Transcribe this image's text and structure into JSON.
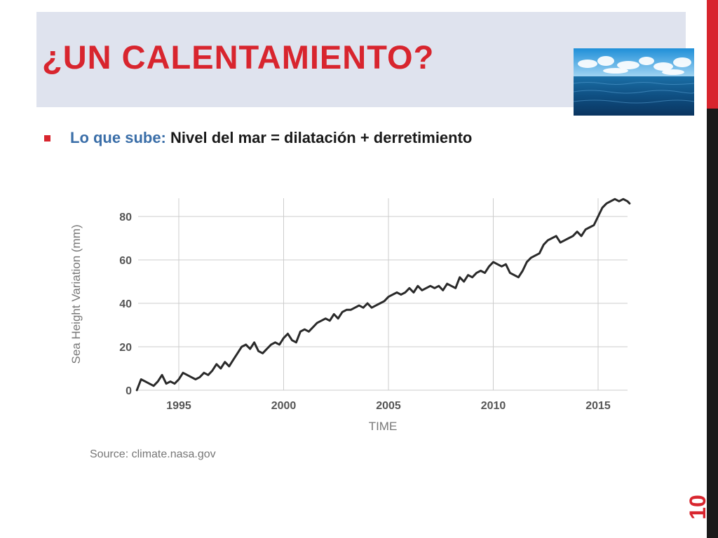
{
  "slide": {
    "title": "¿UN CALENTAMIENTO?",
    "bullet_lead": "Lo que sube:",
    "bullet_rest": " Nivel del mar = dilatación + derretimiento",
    "page_number": "10",
    "photo_icon": "ocean-photo"
  },
  "colors": {
    "title": "#d8252e",
    "accent_red": "#d8252e",
    "band": "#dfe3ee",
    "lead_blue": "#3a6ea8",
    "series": "#2a2a2a",
    "grid": "#cccccc"
  },
  "chart_source": "Source: climate.nasa.gov",
  "chart_data": {
    "type": "line",
    "title": "",
    "xlabel": "TIME",
    "ylabel": "Sea Height Variation (mm)",
    "xlim": [
      1993.0,
      2016.5
    ],
    "ylim": [
      0,
      89
    ],
    "xticks": [
      1995,
      2000,
      2005,
      2010,
      2015
    ],
    "yticks": [
      0,
      20,
      40,
      60,
      80
    ],
    "grid": true,
    "legend": "none",
    "series": [
      {
        "x": [
          1993.0,
          1993.2,
          1993.4,
          1993.6,
          1993.8,
          1994.0,
          1994.2,
          1994.4,
          1994.6,
          1994.8,
          1995.0,
          1995.2,
          1995.4,
          1995.6,
          1995.8,
          1996.0,
          1996.2,
          1996.4,
          1996.6,
          1996.8,
          1997.0,
          1997.2,
          1997.4,
          1997.6,
          1997.8,
          1998.0,
          1998.2,
          1998.4,
          1998.6,
          1998.8,
          1999.0,
          1999.2,
          1999.4,
          1999.6,
          1999.8,
          2000.0,
          2000.2,
          2000.4,
          2000.6,
          2000.8,
          2001.0,
          2001.2,
          2001.4,
          2001.6,
          2001.8,
          2002.0,
          2002.2,
          2002.4,
          2002.6,
          2002.8,
          2003.0,
          2003.2,
          2003.4,
          2003.6,
          2003.8,
          2004.0,
          2004.2,
          2004.4,
          2004.6,
          2004.8,
          2005.0,
          2005.2,
          2005.4,
          2005.6,
          2005.8,
          2006.0,
          2006.2,
          2006.4,
          2006.6,
          2006.8,
          2007.0,
          2007.2,
          2007.4,
          2007.6,
          2007.8,
          2008.0,
          2008.2,
          2008.4,
          2008.6,
          2008.8,
          2009.0,
          2009.2,
          2009.4,
          2009.6,
          2009.8,
          2010.0,
          2010.2,
          2010.4,
          2010.6,
          2010.8,
          2011.0,
          2011.2,
          2011.4,
          2011.6,
          2011.8,
          2012.0,
          2012.2,
          2012.4,
          2012.6,
          2012.8,
          2013.0,
          2013.2,
          2013.4,
          2013.6,
          2013.8,
          2014.0,
          2014.2,
          2014.4,
          2014.6,
          2014.8,
          2015.0,
          2015.2,
          2015.4,
          2015.6,
          2015.8,
          2016.0,
          2016.2,
          2016.4,
          2016.5
        ],
        "y": [
          0,
          5,
          4,
          3,
          2,
          4,
          7,
          3,
          4,
          3,
          5,
          8,
          7,
          6,
          5,
          6,
          8,
          7,
          9,
          12,
          10,
          13,
          11,
          14,
          17,
          20,
          21,
          19,
          22,
          18,
          17,
          19,
          21,
          22,
          21,
          24,
          26,
          23,
          22,
          27,
          28,
          27,
          29,
          31,
          32,
          33,
          32,
          35,
          33,
          36,
          37,
          37,
          38,
          39,
          38,
          40,
          38,
          39,
          40,
          41,
          43,
          44,
          45,
          44,
          45,
          47,
          45,
          48,
          46,
          47,
          48,
          47,
          48,
          46,
          49,
          48,
          47,
          52,
          50,
          53,
          52,
          54,
          55,
          54,
          57,
          59,
          58,
          57,
          58,
          54,
          53,
          52,
          55,
          59,
          61,
          62,
          63,
          67,
          69,
          70,
          71,
          68,
          69,
          70,
          71,
          73,
          71,
          74,
          75,
          76,
          80,
          84,
          86,
          87,
          88,
          87,
          88,
          87,
          86
        ]
      }
    ]
  }
}
